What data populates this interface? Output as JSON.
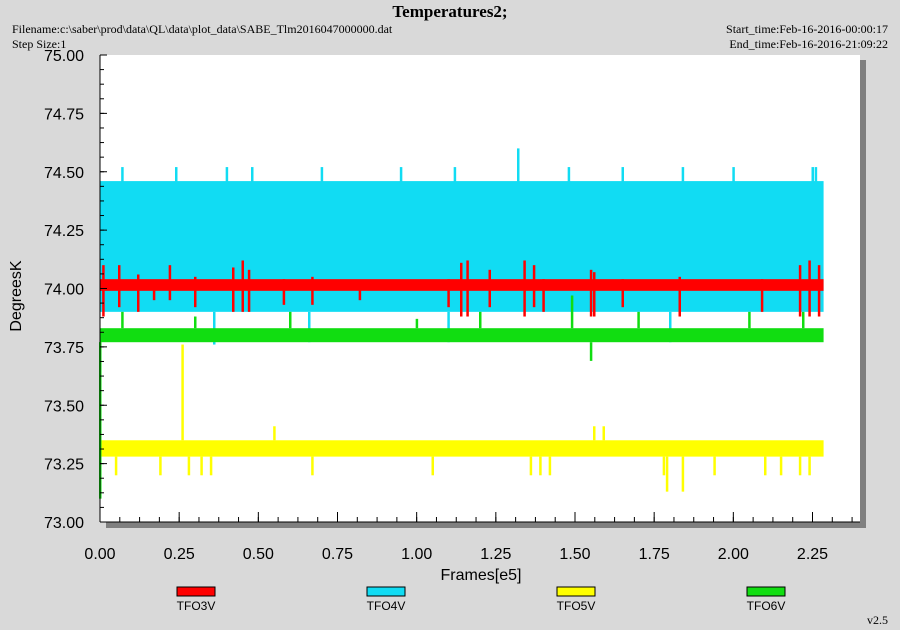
{
  "header": {
    "title": "Temperatures2;",
    "filename": "Filename:c:\\saber\\prod\\data\\QL\\data\\plot_data\\SABE_Tlm2016047000000.dat",
    "step_size": "Step Size:1",
    "start_time": "Start_time:Feb-16-2016-00:00:17",
    "end_time": "End_time:Feb-16-2016-21:09:22"
  },
  "footer": {
    "version": "v2.5"
  },
  "chart_data": {
    "type": "line",
    "title": "Temperatures2;",
    "xlabel": "Frames[e5]",
    "ylabel": "DegreesK",
    "xlim": [
      0,
      2.4
    ],
    "ylim": [
      73.0,
      75.0
    ],
    "x_ticks": [
      "0.00",
      "0.25",
      "0.50",
      "0.75",
      "1.00",
      "1.25",
      "1.50",
      "1.75",
      "2.00",
      "2.25"
    ],
    "y_ticks": [
      "73.00",
      "73.25",
      "73.50",
      "73.75",
      "74.00",
      "74.25",
      "74.50",
      "74.75",
      "75.00"
    ],
    "grid": false,
    "legend_position": "bottom",
    "colors": {
      "background": "#d9d9d9",
      "plot_area": "#ffffff"
    },
    "series": [
      {
        "name": "TFO3V",
        "color": "#ff0000",
        "x_range": [
          0.0,
          2.285
        ],
        "band": [
          73.99,
          74.04
        ],
        "spikes": [
          {
            "x": 0.01,
            "y0": 73.88,
            "y1": 74.1
          },
          {
            "x": 0.06,
            "y0": 73.92,
            "y1": 74.1
          },
          {
            "x": 0.12,
            "y0": 73.9,
            "y1": 74.06
          },
          {
            "x": 0.17,
            "y0": 73.95,
            "y1": 74.03
          },
          {
            "x": 0.22,
            "y0": 73.95,
            "y1": 74.1
          },
          {
            "x": 0.3,
            "y0": 73.92,
            "y1": 74.05
          },
          {
            "x": 0.42,
            "y0": 73.9,
            "y1": 74.09
          },
          {
            "x": 0.45,
            "y0": 73.9,
            "y1": 74.12
          },
          {
            "x": 0.47,
            "y0": 73.9,
            "y1": 74.08
          },
          {
            "x": 0.58,
            "y0": 73.93,
            "y1": 74.04
          },
          {
            "x": 0.67,
            "y0": 73.93,
            "y1": 74.05
          },
          {
            "x": 0.82,
            "y0": 73.95,
            "y1": 74.03
          },
          {
            "x": 1.1,
            "y0": 73.92,
            "y1": 74.04
          },
          {
            "x": 1.14,
            "y0": 73.88,
            "y1": 74.11
          },
          {
            "x": 1.16,
            "y0": 73.88,
            "y1": 74.12
          },
          {
            "x": 1.23,
            "y0": 73.92,
            "y1": 74.08
          },
          {
            "x": 1.34,
            "y0": 73.88,
            "y1": 74.12
          },
          {
            "x": 1.37,
            "y0": 73.92,
            "y1": 74.1
          },
          {
            "x": 1.4,
            "y0": 73.9,
            "y1": 74.04
          },
          {
            "x": 1.55,
            "y0": 73.88,
            "y1": 74.08
          },
          {
            "x": 1.56,
            "y0": 73.88,
            "y1": 74.07
          },
          {
            "x": 1.65,
            "y0": 73.92,
            "y1": 74.04
          },
          {
            "x": 1.83,
            "y0": 73.88,
            "y1": 74.05
          },
          {
            "x": 2.09,
            "y0": 73.9,
            "y1": 74.04
          },
          {
            "x": 2.21,
            "y0": 73.88,
            "y1": 74.1
          },
          {
            "x": 2.24,
            "y0": 73.88,
            "y1": 74.12
          },
          {
            "x": 2.27,
            "y0": 73.88,
            "y1": 74.1
          }
        ]
      },
      {
        "name": "TFO4V",
        "color": "#11dcf3",
        "x_range": [
          0.0,
          2.285
        ],
        "band": [
          73.9,
          74.46
        ],
        "spikes": [
          {
            "x": 0.07,
            "y0": 74.45,
            "y1": 74.52
          },
          {
            "x": 0.24,
            "y0": 74.45,
            "y1": 74.52
          },
          {
            "x": 0.4,
            "y0": 74.45,
            "y1": 74.52
          },
          {
            "x": 0.48,
            "y0": 74.45,
            "y1": 74.52
          },
          {
            "x": 0.7,
            "y0": 74.45,
            "y1": 74.52
          },
          {
            "x": 0.95,
            "y0": 74.45,
            "y1": 74.52
          },
          {
            "x": 1.12,
            "y0": 74.45,
            "y1": 74.52
          },
          {
            "x": 1.32,
            "y0": 74.45,
            "y1": 74.6
          },
          {
            "x": 1.48,
            "y0": 74.45,
            "y1": 74.52
          },
          {
            "x": 1.65,
            "y0": 74.45,
            "y1": 74.52
          },
          {
            "x": 1.84,
            "y0": 74.45,
            "y1": 74.52
          },
          {
            "x": 2.0,
            "y0": 74.45,
            "y1": 74.52
          },
          {
            "x": 2.25,
            "y0": 74.45,
            "y1": 74.52
          },
          {
            "x": 2.26,
            "y0": 74.45,
            "y1": 74.52
          },
          {
            "x": 0.36,
            "y0": 73.76,
            "y1": 73.9
          },
          {
            "x": 0.66,
            "y0": 73.77,
            "y1": 73.9
          },
          {
            "x": 1.1,
            "y0": 73.77,
            "y1": 73.9
          },
          {
            "x": 1.8,
            "y0": 73.77,
            "y1": 73.9
          }
        ]
      },
      {
        "name": "TFO5V",
        "color": "#ffff00",
        "x_range": [
          0.0,
          2.285
        ],
        "band": [
          73.28,
          73.35
        ],
        "spikes": [
          {
            "x": 0.05,
            "y0": 73.28,
            "y1": 73.2
          },
          {
            "x": 0.19,
            "y0": 73.28,
            "y1": 73.2
          },
          {
            "x": 0.26,
            "y0": 73.35,
            "y1": 73.76
          },
          {
            "x": 0.28,
            "y0": 73.28,
            "y1": 73.2
          },
          {
            "x": 0.32,
            "y0": 73.28,
            "y1": 73.2
          },
          {
            "x": 0.35,
            "y0": 73.28,
            "y1": 73.2
          },
          {
            "x": 0.55,
            "y0": 73.35,
            "y1": 73.41
          },
          {
            "x": 0.67,
            "y0": 73.28,
            "y1": 73.2
          },
          {
            "x": 1.05,
            "y0": 73.28,
            "y1": 73.2
          },
          {
            "x": 1.36,
            "y0": 73.28,
            "y1": 73.2
          },
          {
            "x": 1.39,
            "y0": 73.28,
            "y1": 73.2
          },
          {
            "x": 1.42,
            "y0": 73.28,
            "y1": 73.2
          },
          {
            "x": 1.56,
            "y0": 73.35,
            "y1": 73.41
          },
          {
            "x": 1.59,
            "y0": 73.35,
            "y1": 73.41
          },
          {
            "x": 1.78,
            "y0": 73.28,
            "y1": 73.2
          },
          {
            "x": 1.79,
            "y0": 73.28,
            "y1": 73.13
          },
          {
            "x": 1.84,
            "y0": 73.28,
            "y1": 73.13
          },
          {
            "x": 1.94,
            "y0": 73.28,
            "y1": 73.2
          },
          {
            "x": 2.1,
            "y0": 73.28,
            "y1": 73.2
          },
          {
            "x": 2.15,
            "y0": 73.28,
            "y1": 73.2
          },
          {
            "x": 2.21,
            "y0": 73.28,
            "y1": 73.2
          },
          {
            "x": 2.24,
            "y0": 73.28,
            "y1": 73.2
          }
        ]
      },
      {
        "name": "TFO6V",
        "color": "#11dd11",
        "x_range": [
          0.0,
          2.285
        ],
        "band": [
          73.77,
          73.83
        ],
        "spikes": [
          {
            "x": 0.0,
            "y0": 73.77,
            "y1": 73.4
          },
          {
            "x": 0.0,
            "y0": 73.77,
            "y1": 73.1
          },
          {
            "x": 0.07,
            "y0": 73.83,
            "y1": 73.9
          },
          {
            "x": 0.3,
            "y0": 73.83,
            "y1": 73.88
          },
          {
            "x": 0.6,
            "y0": 73.83,
            "y1": 73.9
          },
          {
            "x": 1.0,
            "y0": 73.83,
            "y1": 73.87
          },
          {
            "x": 1.2,
            "y0": 73.83,
            "y1": 73.9
          },
          {
            "x": 1.49,
            "y0": 73.83,
            "y1": 73.97
          },
          {
            "x": 1.55,
            "y0": 73.77,
            "y1": 73.69
          },
          {
            "x": 1.7,
            "y0": 73.83,
            "y1": 73.9
          },
          {
            "x": 2.05,
            "y0": 73.83,
            "y1": 73.9
          },
          {
            "x": 2.22,
            "y0": 73.83,
            "y1": 73.9
          }
        ]
      }
    ]
  }
}
